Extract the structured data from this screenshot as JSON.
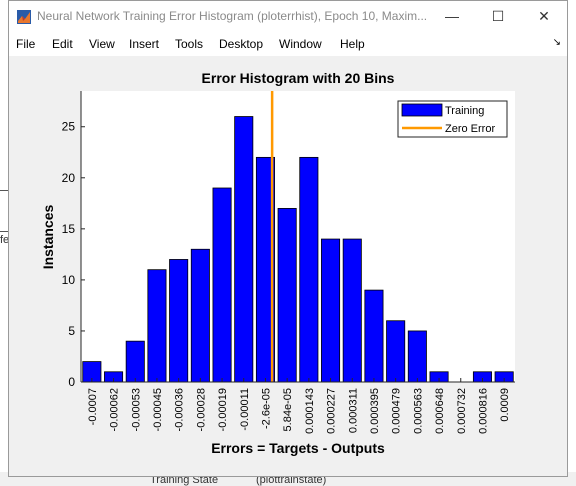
{
  "window": {
    "title": "Neural Network Training Error Histogram (ploterrhist), Epoch 10, Maxim...",
    "minimize_glyph": "—",
    "maximize_glyph": "☐",
    "close_glyph": "✕"
  },
  "menu": {
    "items": [
      "File",
      "Edit",
      "View",
      "Insert",
      "Tools",
      "Desktop",
      "Window",
      "Help"
    ],
    "dock_glyph": "↘"
  },
  "background": {
    "edge_label": "fe",
    "row_label": "Training State",
    "row_value": "(plottrainstate)"
  },
  "chart_data": {
    "type": "bar",
    "title": "Error Histogram with 20 Bins",
    "xlabel": "Errors = Targets - Outputs",
    "ylabel": "Instances",
    "categories": [
      "-0.0007",
      "-0.00062",
      "-0.00053",
      "-0.00045",
      "-0.00036",
      "-0.00028",
      "-0.00019",
      "-0.00011",
      "-2.6e-05",
      "5.84e-05",
      "0.000143",
      "0.000227",
      "0.000311",
      "0.000395",
      "0.000479",
      "0.000563",
      "0.000648",
      "0.000732",
      "0.000816",
      "0.0009"
    ],
    "series": [
      {
        "name": "Training",
        "values": [
          2,
          1,
          4,
          11,
          12,
          13,
          19,
          26,
          22,
          17,
          22,
          14,
          14,
          9,
          6,
          5,
          1,
          0,
          1,
          1
        ],
        "color": "#0000ff"
      }
    ],
    "zero_error": {
      "name": "Zero Error",
      "x": 0,
      "color": "#ff9900"
    },
    "yticks": [
      0,
      5,
      10,
      15,
      20,
      25
    ],
    "ylim": [
      0,
      28.5
    ],
    "legend": "top-right",
    "grid": false
  }
}
